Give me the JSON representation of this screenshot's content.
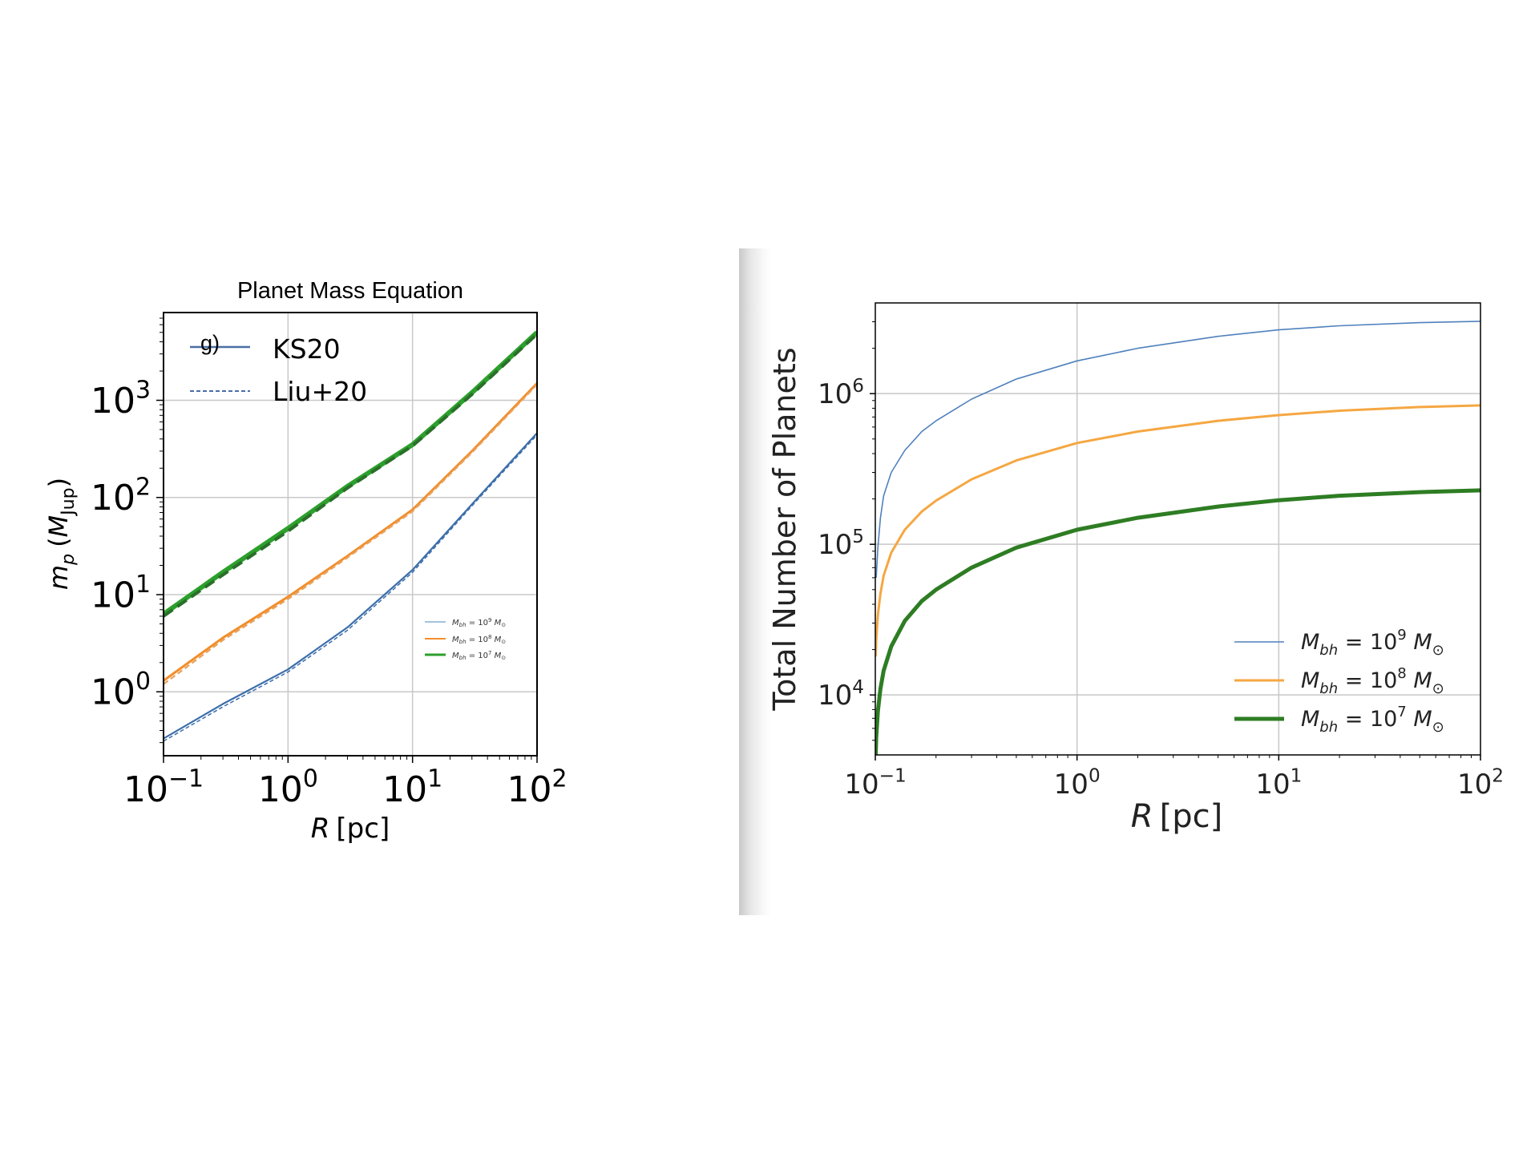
{
  "chart_data": [
    {
      "type": "line",
      "title": "Planet Mass Equation",
      "panel_label": "g)",
      "xlabel_var": "R",
      "xlabel_unit": "[pc]",
      "ylabel_var": "m",
      "ylabel_sub": "p",
      "ylabel_unit_var": "M",
      "ylabel_unit_sub": "Jup",
      "xscale": "log",
      "yscale": "log",
      "xlim": [
        0.1,
        100
      ],
      "ylim": [
        0.22,
        8000
      ],
      "x_ticks": [
        {
          "value": 0.1,
          "base": "10",
          "exp": "−1"
        },
        {
          "value": 1,
          "base": "10",
          "exp": "0"
        },
        {
          "value": 10,
          "base": "10",
          "exp": "1"
        },
        {
          "value": 100,
          "base": "10",
          "exp": "2"
        }
      ],
      "y_ticks": [
        {
          "value": 1,
          "base": "10",
          "exp": "0"
        },
        {
          "value": 10,
          "base": "10",
          "exp": "1"
        },
        {
          "value": 100,
          "base": "10",
          "exp": "2"
        },
        {
          "value": 1000,
          "base": "10",
          "exp": "3"
        }
      ],
      "grid": true,
      "style_legend": {
        "placement": "top-left",
        "entries": [
          {
            "label": "KS20",
            "dash": "solid",
            "color": "#4a6fa5"
          },
          {
            "label": "Liu+20",
            "dash": "dashed",
            "color": "#4a6fa5"
          }
        ]
      },
      "mass_legend": {
        "placement": "center-right",
        "entries": [
          {
            "var": "M",
            "sub": "bh",
            "eq": " = 10",
            "exp": "9",
            "unit": " M",
            "sun": "⊙",
            "color": "#86aed6"
          },
          {
            "var": "M",
            "sub": "bh",
            "eq": " = 10",
            "exp": "8",
            "unit": " M",
            "sun": "⊙",
            "color": "#f28e2b"
          },
          {
            "var": "M",
            "sub": "bh",
            "eq": " = 10",
            "exp": "7",
            "unit": " M",
            "sun": "⊙",
            "color": "#2ca02c"
          }
        ]
      },
      "series": [
        {
          "name": "KS20",
          "mass_exp": 9,
          "color": "#3c6eaa",
          "width": 2.2,
          "dash": "solid",
          "x": [
            0.1,
            0.3,
            1,
            3,
            10,
            30,
            100
          ],
          "y": [
            0.33,
            0.75,
            1.7,
            4.6,
            18,
            85,
            460
          ]
        },
        {
          "name": "Liu+20",
          "mass_exp": 9,
          "color": "#3c6eaa",
          "width": 1.5,
          "dash": "5,3",
          "x": [
            0.1,
            0.3,
            1,
            3,
            10,
            30,
            100
          ],
          "y": [
            0.31,
            0.7,
            1.6,
            4.3,
            17,
            82,
            440
          ]
        },
        {
          "name": "KS20",
          "mass_exp": 8,
          "color": "#f28e2b",
          "width": 3.0,
          "dash": "solid",
          "x": [
            0.1,
            0.3,
            1,
            3,
            10,
            30,
            100
          ],
          "y": [
            1.3,
            3.6,
            9.5,
            25,
            75,
            300,
            1500
          ]
        },
        {
          "name": "Liu+20",
          "mass_exp": 8,
          "color": "#e8a25f",
          "width": 2.2,
          "dash": "7,4",
          "x": [
            0.1,
            0.3,
            1,
            3,
            10,
            30,
            100
          ],
          "y": [
            1.2,
            3.4,
            9,
            24,
            72,
            290,
            1450
          ]
        },
        {
          "name": "KS20",
          "mass_exp": 7,
          "color": "#2ca02c",
          "width": 6.0,
          "dash": "solid",
          "x": [
            0.1,
            0.3,
            1,
            3,
            10,
            30,
            100
          ],
          "y": [
            6.3,
            17,
            48,
            130,
            350,
            1200,
            5000
          ]
        },
        {
          "name": "Liu+20",
          "mass_exp": 7,
          "color": "#2a6f2a",
          "width": 4.0,
          "dash": "14,7",
          "x": [
            0.1,
            0.3,
            1,
            3,
            10,
            30,
            100
          ],
          "y": [
            6.0,
            16,
            45,
            125,
            340,
            1150,
            4800
          ]
        }
      ]
    },
    {
      "type": "line",
      "ylabel": "Total Number of Planets",
      "xlabel_var": "R",
      "xlabel_unit": "[pc]",
      "xscale": "log",
      "yscale": "log",
      "xlim": [
        0.1,
        100
      ],
      "ylim": [
        4000,
        4000000
      ],
      "x_ticks": [
        {
          "value": 0.1,
          "base": "10",
          "exp": "−1"
        },
        {
          "value": 1,
          "base": "10",
          "exp": "0"
        },
        {
          "value": 10,
          "base": "10",
          "exp": "1"
        },
        {
          "value": 100,
          "base": "10",
          "exp": "2"
        }
      ],
      "y_ticks": [
        {
          "value": 10000,
          "base": "10",
          "exp": "4"
        },
        {
          "value": 100000,
          "base": "10",
          "exp": "5"
        },
        {
          "value": 1000000,
          "base": "10",
          "exp": "6"
        }
      ],
      "grid": true,
      "legend": {
        "placement": "lower-right",
        "entries": [
          {
            "var": "M",
            "sub": "bh",
            "eq": " = 10",
            "exp": "9",
            "unit": " M",
            "sun": "⊙",
            "color": "#4f81bd",
            "width": 1.6
          },
          {
            "var": "M",
            "sub": "bh",
            "eq": " = 10",
            "exp": "8",
            "unit": " M",
            "sun": "⊙",
            "color": "#f5a742",
            "width": 3
          },
          {
            "var": "M",
            "sub": "bh",
            "eq": " = 10",
            "exp": "7",
            "unit": " M",
            "sun": "⊙",
            "color": "#2e7d23",
            "width": 5
          }
        ]
      },
      "series": [
        {
          "mass_exp": 9,
          "color": "#4f81bd",
          "width": 1.6,
          "x": [
            0.101,
            0.103,
            0.106,
            0.11,
            0.12,
            0.14,
            0.17,
            0.2,
            0.3,
            0.5,
            1,
            2,
            5,
            10,
            20,
            50,
            100
          ],
          "y": [
            60000,
            95000,
            150000,
            210000,
            300000,
            420000,
            560000,
            660000,
            920000,
            1250000,
            1650000,
            2000000,
            2400000,
            2650000,
            2820000,
            2960000,
            3020000
          ]
        },
        {
          "mass_exp": 8,
          "color": "#f5a742",
          "width": 3,
          "x": [
            0.1005,
            0.101,
            0.103,
            0.106,
            0.11,
            0.12,
            0.14,
            0.17,
            0.2,
            0.3,
            0.5,
            1,
            2,
            5,
            10,
            20,
            50,
            100
          ],
          "y": [
            18000,
            23000,
            34000,
            47000,
            62000,
            88000,
            125000,
            165000,
            195000,
            270000,
            360000,
            470000,
            560000,
            660000,
            720000,
            770000,
            815000,
            835000
          ]
        },
        {
          "mass_exp": 7,
          "color": "#2e7d23",
          "width": 5,
          "x": [
            0.1005,
            0.101,
            0.103,
            0.106,
            0.11,
            0.12,
            0.14,
            0.17,
            0.2,
            0.3,
            0.5,
            1,
            2,
            5,
            10,
            20,
            50,
            100
          ],
          "y": [
            4000,
            5200,
            7800,
            11000,
            14500,
            21000,
            31000,
            42000,
            50000,
            70000,
            95000,
            125000,
            150000,
            178000,
            196000,
            210000,
            222000,
            228000
          ]
        }
      ]
    }
  ]
}
